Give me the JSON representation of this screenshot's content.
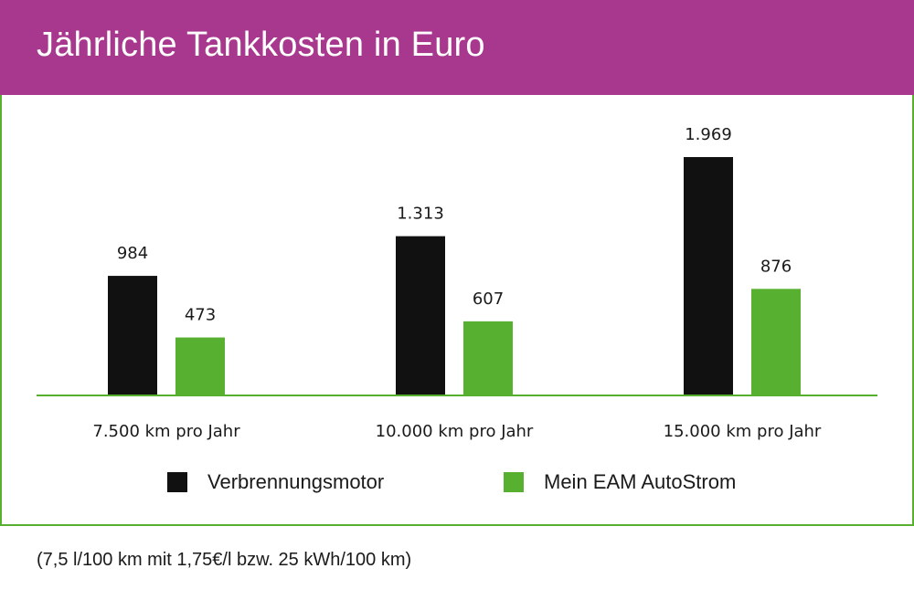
{
  "title": "Jährliche Tankkosten in Euro",
  "footnote": "(7,5 l/100 km mit 1,75€/l bzw. 25 kWh/100 km)",
  "colors": {
    "header": "#a8378e",
    "accent": "#58b031",
    "bar_dark": "#111111",
    "bar_green": "#58b031"
  },
  "chart_data": {
    "type": "bar",
    "categories": [
      "7.500 km pro Jahr",
      "10.000 km pro Jahr",
      "15.000 km pro Jahr"
    ],
    "series": [
      {
        "name": "Verbrennungsmotor",
        "values": [
          984,
          1313,
          1969
        ],
        "labels": [
          "984",
          "1.313",
          "1.969"
        ],
        "color": "#111111"
      },
      {
        "name": "Mein EAM AutoStrom",
        "values": [
          473,
          607,
          876
        ],
        "labels": [
          "473",
          "607",
          "876"
        ],
        "color": "#58b031"
      }
    ],
    "ylim": [
      0,
      2200
    ],
    "grid": false,
    "legend": "bottom"
  }
}
